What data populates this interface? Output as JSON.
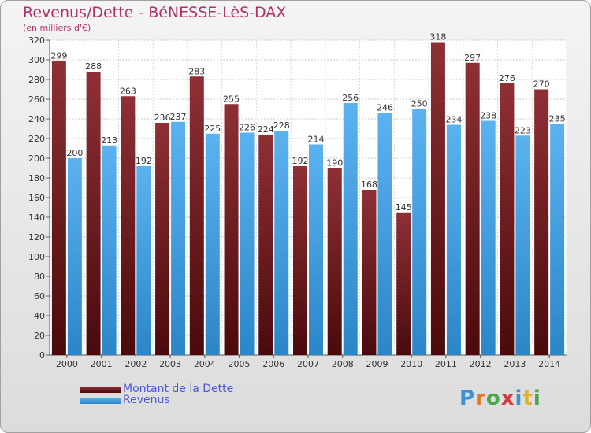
{
  "chart_data": {
    "type": "bar",
    "title": "Revenus/Dette - BéNESSE-LèS-DAX",
    "subtitle": "(en milliers d'€)",
    "categories": [
      "2000",
      "2001",
      "2002",
      "2003",
      "2004",
      "2005",
      "2006",
      "2007",
      "2008",
      "2009",
      "2010",
      "2011",
      "2012",
      "2013",
      "2014"
    ],
    "series": [
      {
        "name": "Montant de la Dette",
        "color": "#7a1d20",
        "values": [
          299,
          288,
          263,
          236,
          283,
          255,
          224,
          192,
          190,
          168,
          145,
          318,
          297,
          276,
          270
        ]
      },
      {
        "name": "Revenus",
        "color": "#3d9be0",
        "values": [
          200,
          213,
          192,
          237,
          225,
          226,
          228,
          214,
          256,
          246,
          250,
          234,
          238,
          223,
          235
        ]
      }
    ],
    "ylim": [
      0,
      320
    ],
    "ytick_step": 20,
    "grid": true,
    "legend_position": "bottom-left",
    "brand": "Proxiti"
  }
}
